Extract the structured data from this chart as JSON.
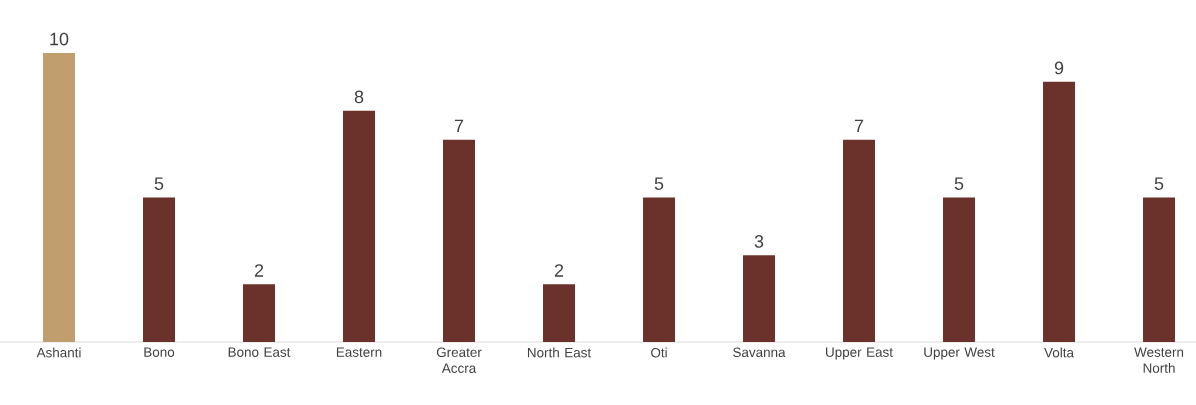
{
  "chart_data": {
    "type": "bar",
    "categories": [
      "Ashanti",
      "Bono",
      "Bono East",
      "Eastern",
      "Greater Accra",
      "North East",
      "Oti",
      "Savanna",
      "Upper East",
      "Upper West",
      "Volta",
      "Western North"
    ],
    "values": [
      10,
      5,
      2,
      8,
      7,
      2,
      5,
      3,
      7,
      5,
      9,
      5
    ],
    "colors": [
      "#c19e6e",
      "#6b312b",
      "#6b312b",
      "#6b312b",
      "#6b312b",
      "#6b312b",
      "#6b312b",
      "#6b312b",
      "#6b312b",
      "#6b312b",
      "#6b312b",
      "#6b312b"
    ],
    "data_labels": true
  }
}
